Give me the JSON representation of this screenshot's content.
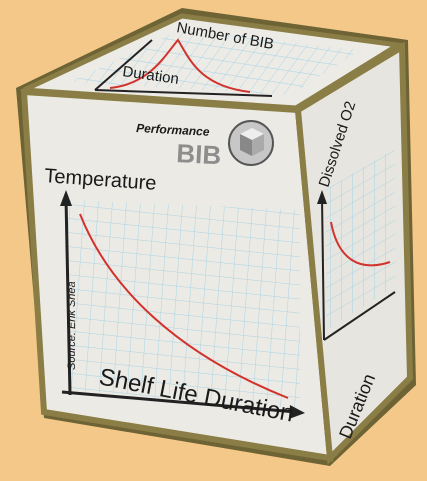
{
  "top_face": {
    "y_label": "Number of BIB",
    "x_label": "Duration"
  },
  "front_face": {
    "logo_top": "Performance",
    "logo_bottom": "BIB",
    "y_label": "Temperature",
    "x_label": "Shelf Life Duration"
  },
  "right_face": {
    "y_label": "Dissolved O2",
    "x_label": "Duration"
  },
  "credit": "Source: Erik Shea"
}
